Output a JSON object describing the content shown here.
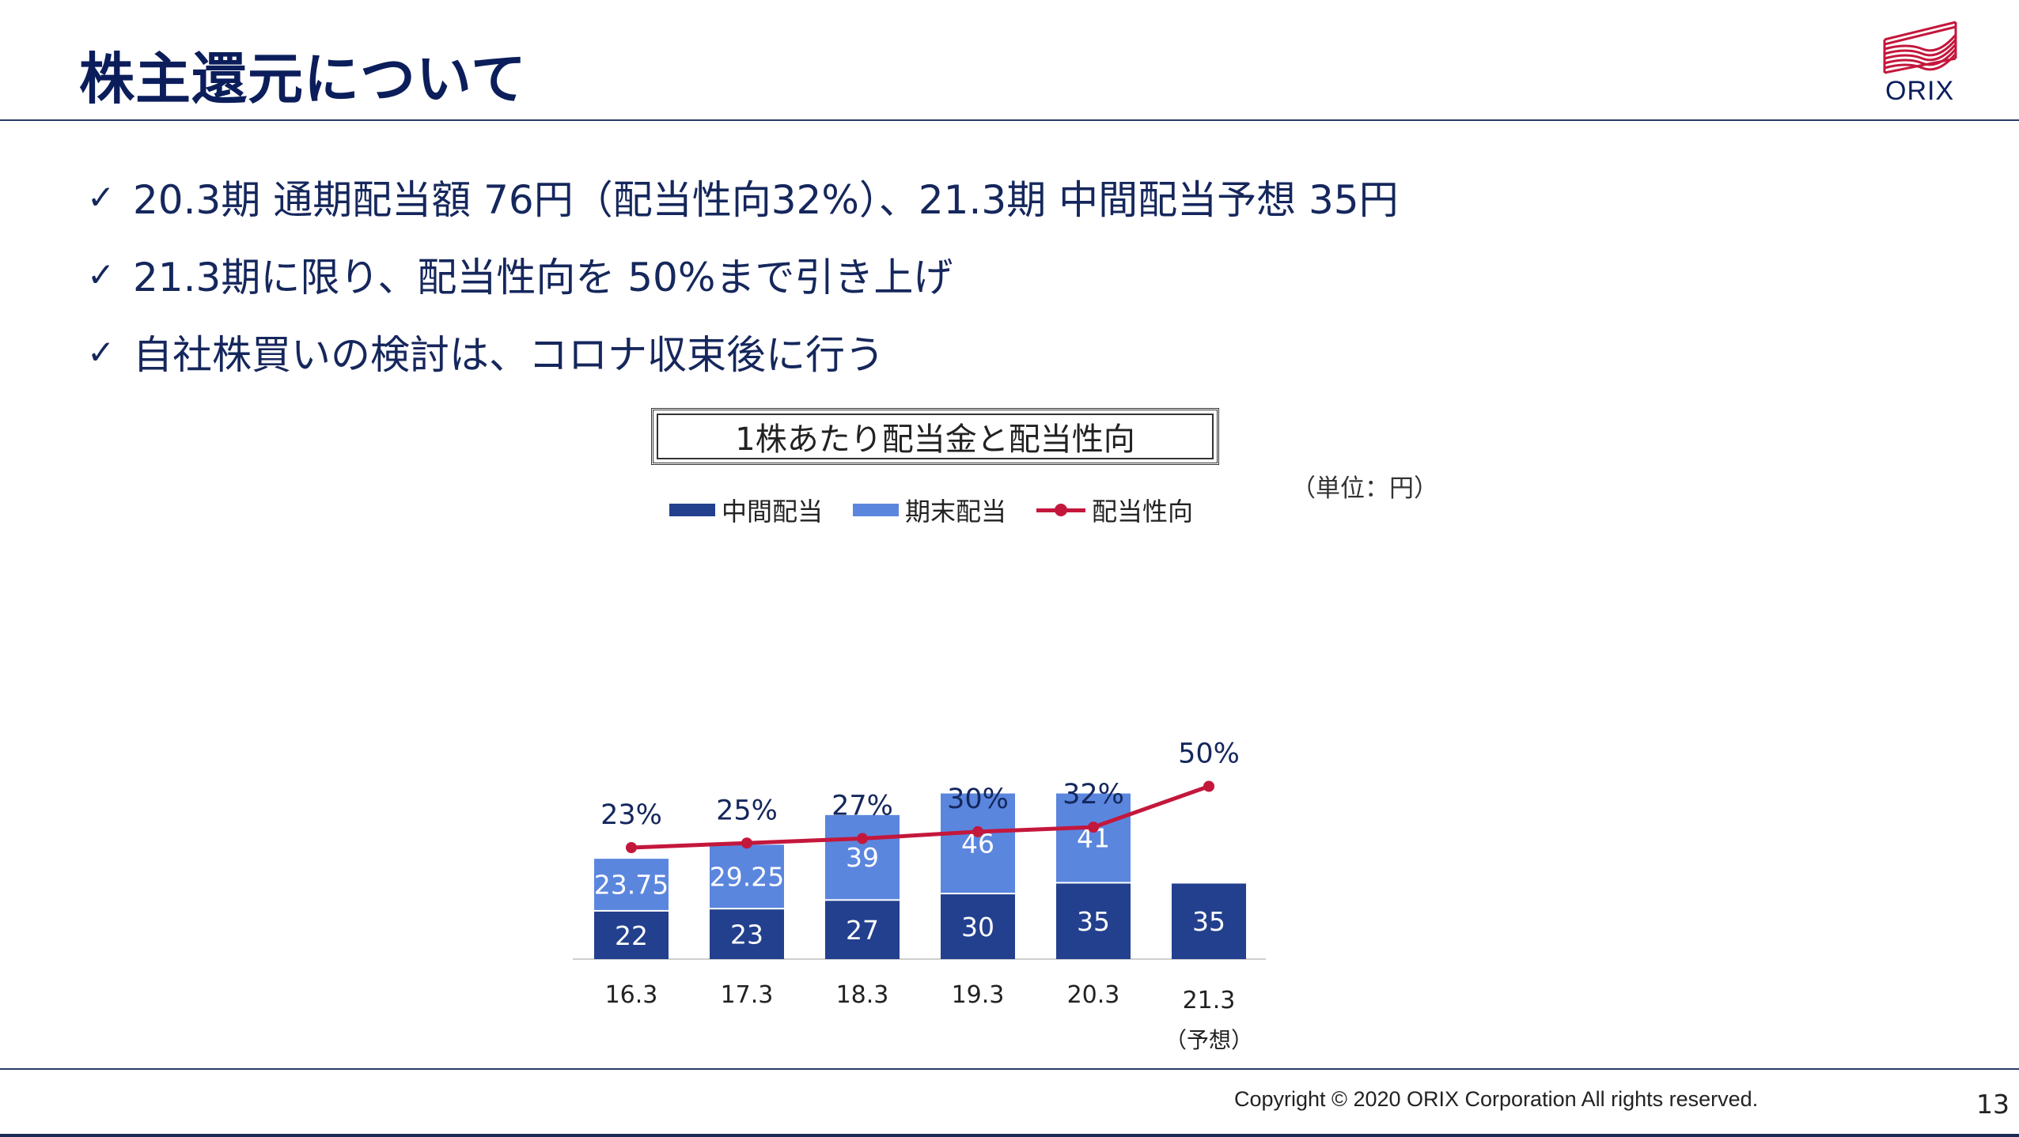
{
  "title": "株主還元について",
  "logo_text": "ORIX",
  "bullets": [
    "20.3期 通期配当額 76円（配当性向32%）、21.3期 中間配当予想 35円",
    "21.3期に限り、配当性向を 50%まで引き上げ",
    "自社株買いの検討は、コロナ収束後に行う"
  ],
  "check_icon": "✓",
  "unit_label": "（単位：円）",
  "footer": {
    "copyright": "Copyright © 2020 ORIX Corporation  All rights reserved.",
    "page": "13"
  },
  "colors": {
    "interim": "#23408e",
    "year_end": "#5b86de",
    "payout": "#c4173c",
    "navy": "#0b1e5b"
  },
  "chart_data": {
    "type": "bar",
    "stacked": true,
    "title": "1株あたり配当金と配当性向",
    "categories": [
      "16.3",
      "17.3",
      "18.3",
      "19.3",
      "20.3",
      "21.3"
    ],
    "category_notes": [
      "",
      "",
      "",
      "",
      "",
      "（予想）"
    ],
    "series": [
      {
        "name": "中間配当",
        "values": [
          22,
          23,
          27,
          30,
          35,
          35
        ]
      },
      {
        "name": "期末配当",
        "values": [
          23.75,
          29.25,
          39,
          46,
          41,
          null
        ]
      }
    ],
    "value_labels": {
      "中間配当": [
        "22",
        "23",
        "27",
        "30",
        "35",
        "35"
      ],
      "期末配当": [
        "23.75",
        "29.25",
        "39",
        "46",
        "41",
        ""
      ]
    },
    "line_series": {
      "name": "配当性向",
      "values": [
        23,
        25,
        27,
        30,
        32,
        50
      ],
      "labels": [
        "23%",
        "25%",
        "27%",
        "30%",
        "32%",
        "50%"
      ]
    },
    "legend": [
      "中間配当",
      "期末配当",
      "配当性向"
    ],
    "legend_position": "top",
    "grid": false
  }
}
